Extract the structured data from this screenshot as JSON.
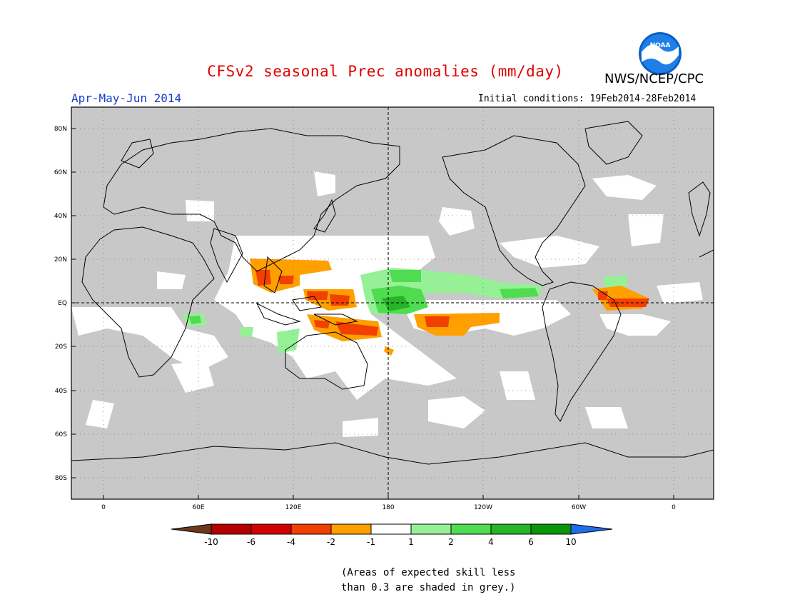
{
  "title": "CFSv2 seasonal Prec anomalies (mm/day)",
  "agency": "NWS/NCEP/CPC",
  "logo_text": "NOAA",
  "season": "Apr-May-Jun 2014",
  "initial_conditions": "Initial conditions: 19Feb2014-28Feb2014",
  "note_line1": "(Areas of expected skill less",
  "note_line2": "than 0.3 are shaded in grey.)",
  "lat_ticks": [
    "80N",
    "60N",
    "40N",
    "20N",
    "EQ",
    "20S",
    "40S",
    "60S",
    "80S"
  ],
  "lon_ticks": [
    "0",
    "60E",
    "120E",
    "180",
    "120W",
    "60W",
    "0"
  ],
  "colorbar": {
    "labels": [
      "-10",
      "-6",
      "-4",
      "-2",
      "-1",
      "1",
      "2",
      "4",
      "6",
      "10"
    ],
    "colors": [
      "#6b3a1e",
      "#b40000",
      "#d40000",
      "#f24000",
      "#ff9f00",
      "#ffffff",
      "#96f096",
      "#50dc50",
      "#28b428",
      "#0a960a",
      "#1e6eeb"
    ]
  },
  "colors": {
    "title": "#e00000",
    "season": "#1a3ccc",
    "skill_grey": "#c8c8c8"
  }
}
